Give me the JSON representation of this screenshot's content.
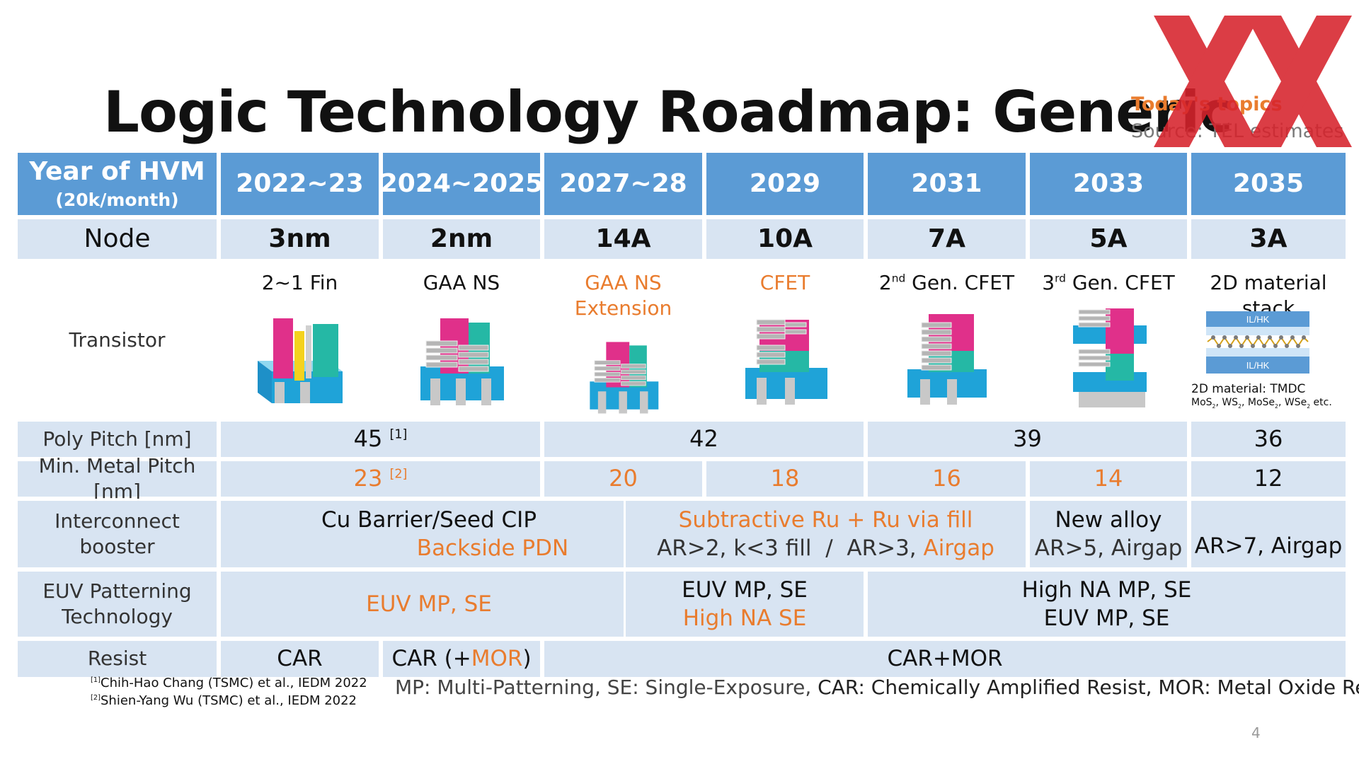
{
  "title": "Logic Technology Roadmap: Generic",
  "topics_label": "Today's topics",
  "source_label": "Source: TEL estimates",
  "header": {
    "row_label": "Year of HVM",
    "row_sublabel": "(20k/month)",
    "years": [
      "2022~23",
      "2024~2025",
      "2027~28",
      "2029",
      "2031",
      "2033",
      "2035"
    ]
  },
  "node": {
    "label": "Node",
    "values": [
      "3nm",
      "2nm",
      "14A",
      "10A",
      "7A",
      "5A",
      "3A"
    ]
  },
  "transistor": {
    "label": "Transistor",
    "names": [
      "2~1 Fin",
      "GAA NS",
      "GAA NS Extension",
      "CFET",
      "Gen. CFET",
      "Gen. CFET",
      "2D material stack"
    ],
    "gen_prefix": [
      "2",
      "nd",
      "3",
      "rd"
    ],
    "material_layer_label": "IL/HK",
    "material_note": "2D material: TMDC",
    "material_list": [
      "MoS",
      "2",
      ", WS",
      "2",
      ", MoSe",
      "2",
      ", WSe",
      "2",
      " etc."
    ]
  },
  "poly_pitch": {
    "label": "Poly Pitch [nm]",
    "values": [
      "45",
      "42",
      "39",
      "36"
    ],
    "ref": "[1]"
  },
  "metal_pitch": {
    "label": "Min. Metal Pitch [nm]",
    "values": [
      "23",
      "20",
      "18",
      "16",
      "14",
      "12"
    ],
    "ref": "[2]"
  },
  "interconnect": {
    "label": "Interconnect booster",
    "col1_line1": "Cu Barrier/Seed CIP",
    "col1_line2": "Backside PDN",
    "col2_line1": "Subtractive Ru + Ru via fill",
    "col2_line2a": "AR>2, k<3 fill  /  AR>3, ",
    "col2_line2b": "Airgap",
    "col3_line1": "New alloy",
    "col3_line2": "AR>5, Airgap",
    "col4_line1": "AR>7, Airgap"
  },
  "euv": {
    "label_line1": "EUV Patterning",
    "label_line2": "Technology",
    "col1": "EUV MP, SE",
    "col2_line1": "EUV MP, SE",
    "col2_line2": "High NA SE",
    "col3_line1": "High NA MP, SE",
    "col3_line2": "EUV MP, SE"
  },
  "resist": {
    "label": "Resist",
    "col1": "CAR",
    "col2_pre": "CAR (+",
    "col2_mor": "MOR",
    "col2_post": ")",
    "col3": "CAR+MOR"
  },
  "footnotes": [
    {
      "ref": "[1]",
      "text": "Chih-Hao Chang (TSMC) et al., IEDM 2022"
    },
    {
      "ref": "[2]",
      "text": "Shien-Yang Wu (TSMC) et al., IEDM 2022"
    }
  ],
  "legend_part1": "MP: Multi-Patterning, SE: Single-Exposure, ",
  "legend_part2": "CAR: Chemically Amplified Resist, MOR: Metal Oxide Resist",
  "page_number": "4",
  "colors": {
    "header_blue": "#5b9bd5",
    "row_light": "#d8e4f2",
    "accent_orange": "#e97c2e",
    "logo_red": "#d7232c"
  }
}
